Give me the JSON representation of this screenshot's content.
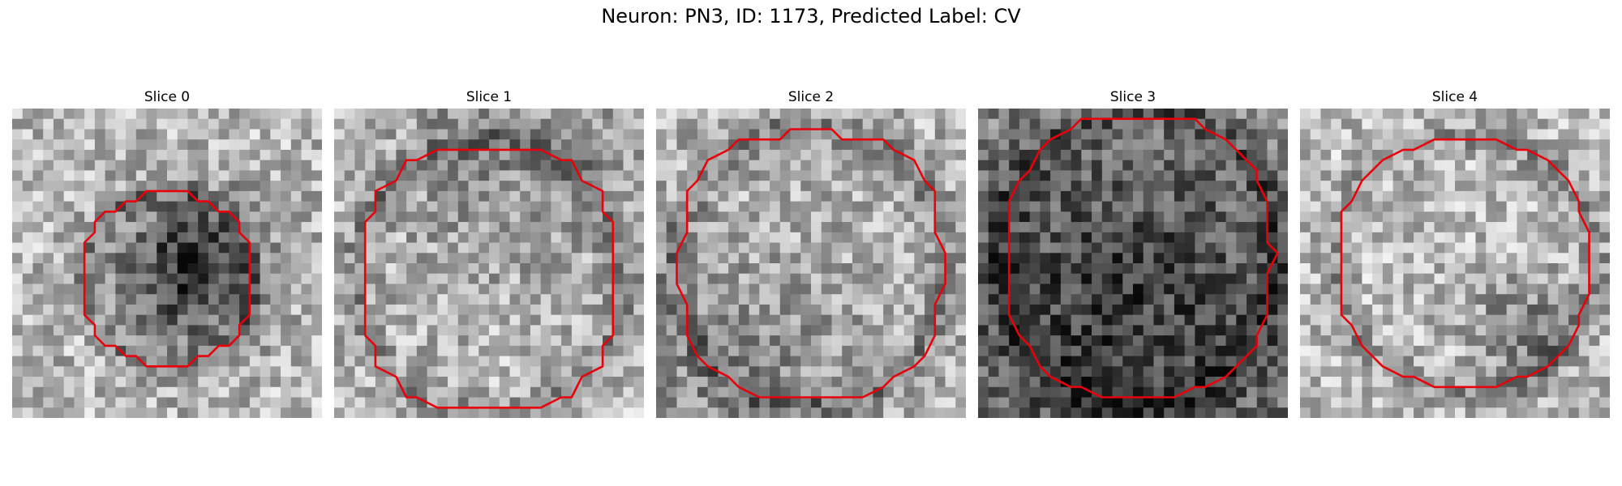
{
  "figure": {
    "title": "Neuron: PN3, ID: 1173, Predicted Label: CV"
  },
  "panels": [
    {
      "title": "Slice 0"
    },
    {
      "title": "Slice 1"
    },
    {
      "title": "Slice 2"
    },
    {
      "title": "Slice 3"
    },
    {
      "title": "Slice 4"
    }
  ],
  "contour_color": "#e8000b"
}
